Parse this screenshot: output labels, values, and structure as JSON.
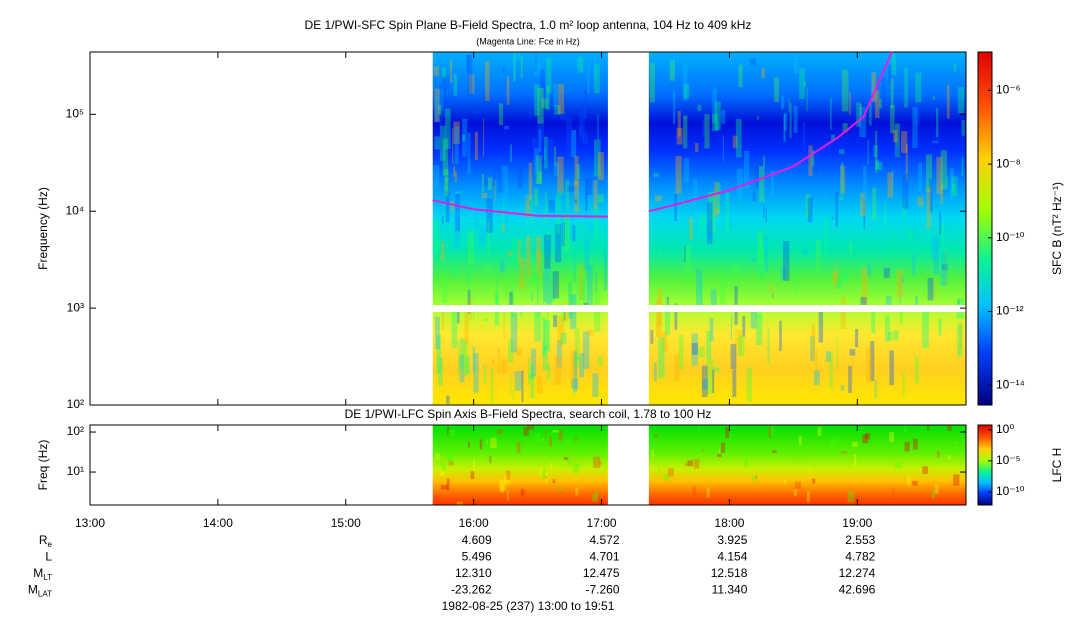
{
  "chart_data": [
    {
      "type": "spectrogram",
      "title": "DE 1/PWI-SFC  Spin Plane B-Field Spectra, 1.0 m² loop antenna, 104 Hz to 409 kHz",
      "subtitle": "(Magenta Line: Fce in Hz)",
      "ylabel": "Frequency (Hz)",
      "xlim": [
        13,
        19.85
      ],
      "xticks": [
        {
          "value": 13,
          "label": "13:00"
        },
        {
          "value": 14,
          "label": "14:00"
        },
        {
          "value": 15,
          "label": "15:00"
        },
        {
          "value": 16,
          "label": "16:00"
        },
        {
          "value": 17,
          "label": "17:00"
        },
        {
          "value": 18,
          "label": "18:00"
        },
        {
          "value": 19,
          "label": "19:00"
        }
      ],
      "ylim": [
        100,
        440000
      ],
      "log_y": true,
      "yticks": [
        {
          "value": 100,
          "label": "10²"
        },
        {
          "value": 1000,
          "label": "10³"
        },
        {
          "value": 10000,
          "label": "10⁴"
        },
        {
          "value": 100000,
          "label": "10⁵"
        }
      ],
      "coverage": [
        [
          15.68,
          17.05
        ],
        [
          17.37,
          19.85
        ]
      ],
      "series": [
        {
          "color": "#e020e0",
          "x": [
            15.68,
            16,
            16.5,
            17.05,
            17.2,
            17.37,
            17.5,
            18,
            18.5,
            18.85,
            19.05,
            19.27
          ],
          "values": [
            13000,
            10500,
            9000,
            8800,
            null,
            10000,
            11000,
            16500,
            29000,
            58000,
            95000,
            440000
          ]
        }
      ],
      "colorbar": {
        "label": "SFC B (nT² Hz⁻¹)",
        "zlim": [
          2.9e-15,
          1.1e-05
        ],
        "log": true,
        "zticks": [
          {
            "value": 1e-06,
            "label": "10⁻⁶"
          },
          {
            "value": 1e-08,
            "label": "10⁻⁸"
          },
          {
            "value": 1e-10,
            "label": "10⁻¹⁰"
          },
          {
            "value": 1e-12,
            "label": "10⁻¹²"
          },
          {
            "value": 1e-14,
            "label": "10⁻¹⁴"
          }
        ]
      }
    },
    {
      "type": "spectrogram",
      "title": "DE 1/PWI-LFC  Spin Axis B-Field Spectra, search coil, 1.78 to 100 Hz",
      "ylabel": "Freq (Hz)",
      "xlim": [
        13,
        19.85
      ],
      "xticks": [
        {
          "value": 13,
          "label": "13:00"
        },
        {
          "value": 14,
          "label": "14:00"
        },
        {
          "value": 15,
          "label": "15:00"
        },
        {
          "value": 16,
          "label": "16:00"
        },
        {
          "value": 17,
          "label": "17:00"
        },
        {
          "value": 18,
          "label": "18:00"
        },
        {
          "value": 19,
          "label": "19:00"
        }
      ],
      "ylim": [
        1.5,
        150
      ],
      "log_y": true,
      "yticks": [
        {
          "value": 10,
          "label": "10¹"
        },
        {
          "value": 100,
          "label": "10²"
        }
      ],
      "coverage": [
        [
          15.68,
          17.05
        ],
        [
          17.37,
          19.85
        ]
      ],
      "colorbar": {
        "label": "LFC H",
        "zlim": [
          8e-13,
          6
        ],
        "log": true,
        "zticks": [
          {
            "value": 1,
            "label": "10⁰"
          },
          {
            "value": 1e-05,
            "label": "10⁻⁵"
          },
          {
            "value": 1e-10,
            "label": "10⁻¹⁰"
          }
        ]
      }
    }
  ],
  "ephemeris": {
    "rows": [
      {
        "label": "R",
        "sub": "e",
        "values": [
          "4.609",
          "4.572",
          "3.925",
          "2.553"
        ]
      },
      {
        "label": "L",
        "sub": "",
        "values": [
          "5.496",
          "4.701",
          "4.154",
          "4.782"
        ]
      },
      {
        "label": "M",
        "sub": "LT",
        "values": [
          "12.310",
          "12.475",
          "12.518",
          "12.274"
        ]
      },
      {
        "label": "M",
        "sub": "LAT",
        "values": [
          "-23.262",
          "-7.260",
          "11.340",
          "42.696"
        ]
      }
    ],
    "footer": "1982-08-25 (237) 13:00 to 19:51"
  }
}
